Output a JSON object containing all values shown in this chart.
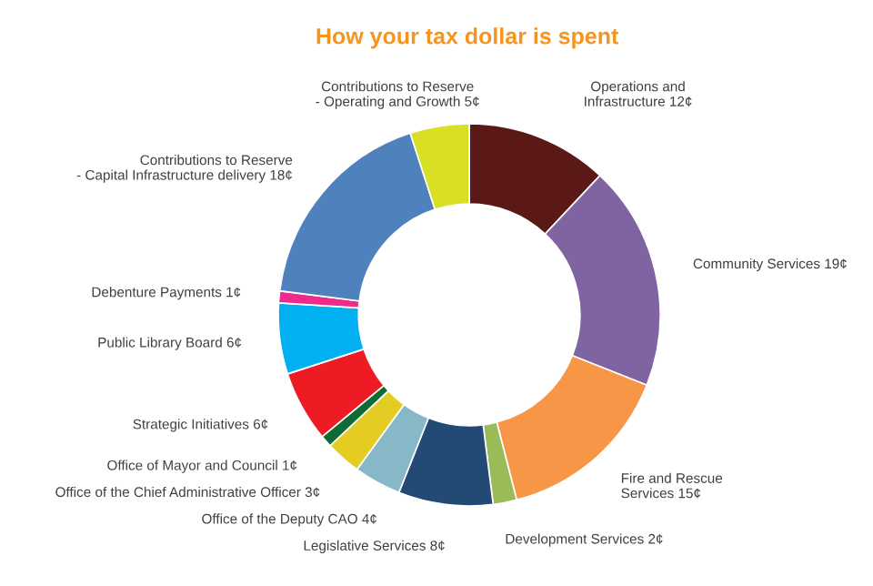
{
  "chart_data": {
    "type": "donut",
    "title": "How your tax dollar is spent",
    "categories": [
      "Operations and Infrastructure",
      "Community Services",
      "Fire and Rescue Services",
      "Development Services",
      "Legislative Services",
      "Office of the Deputy CAO",
      "Office of the Chief Administrative Officer",
      "Office of Mayor and Council",
      "Strategic Initiatives",
      "Public Library Board",
      "Debenture Payments",
      "Contributions to Reserve - Capital Infrastructure delivery",
      "Contributions to Reserve - Operating and Growth"
    ],
    "values": [
      12,
      19,
      15,
      2,
      8,
      4,
      3,
      1,
      6,
      6,
      1,
      18,
      5
    ],
    "value_labels": [
      "12¢",
      "19¢",
      "15¢",
      "2¢",
      "8¢",
      "4¢",
      "3¢",
      "1¢",
      "6¢",
      "6¢",
      "1¢",
      "18¢",
      "5¢"
    ],
    "colors": [
      "#5a1916",
      "#8064a2",
      "#f79646",
      "#9bbb59",
      "#234a75",
      "#86b8c8",
      "#e3cd22",
      "#0e6b35",
      "#ed1c24",
      "#00b0f0",
      "#ec2b8c",
      "#4f81bd",
      "#d9df22"
    ]
  }
}
